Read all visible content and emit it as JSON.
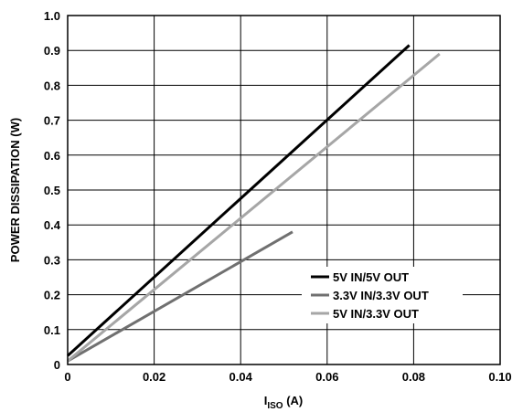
{
  "chart_data": {
    "type": "line",
    "title": "",
    "xlabel_main": "I",
    "xlabel_sub": "ISO",
    "xlabel_unit": " (A)",
    "ylabel": "POWER DISSIPATION (W)",
    "xlim": [
      0,
      0.1
    ],
    "ylim": [
      0,
      1.0
    ],
    "xticks": [
      0,
      0.02,
      0.04,
      0.06,
      0.08,
      0.1
    ],
    "xtick_labels": [
      "0",
      "0.02",
      "0.04",
      "0.06",
      "0.08",
      "0.10"
    ],
    "yticks": [
      0,
      0.1,
      0.2,
      0.3,
      0.4,
      0.5,
      0.6,
      0.7,
      0.8,
      0.9,
      1.0
    ],
    "ytick_labels": [
      "0",
      "0.1",
      "0.2",
      "0.3",
      "0.4",
      "0.5",
      "0.6",
      "0.7",
      "0.8",
      "0.9",
      "1.0"
    ],
    "grid": true,
    "legend_position": "bottom-right",
    "series": [
      {
        "name": "5V IN/5V OUT",
        "color": "#000000",
        "x": [
          0,
          0.079
        ],
        "y": [
          0.025,
          0.915
        ]
      },
      {
        "name": "3.3V IN/3.3V OUT",
        "color": "#707070",
        "x": [
          0,
          0.052
        ],
        "y": [
          0.01,
          0.38
        ]
      },
      {
        "name": "5V IN/3.3V OUT",
        "color": "#a6a6a6",
        "x": [
          0,
          0.086
        ],
        "y": [
          0.01,
          0.89
        ]
      }
    ]
  }
}
